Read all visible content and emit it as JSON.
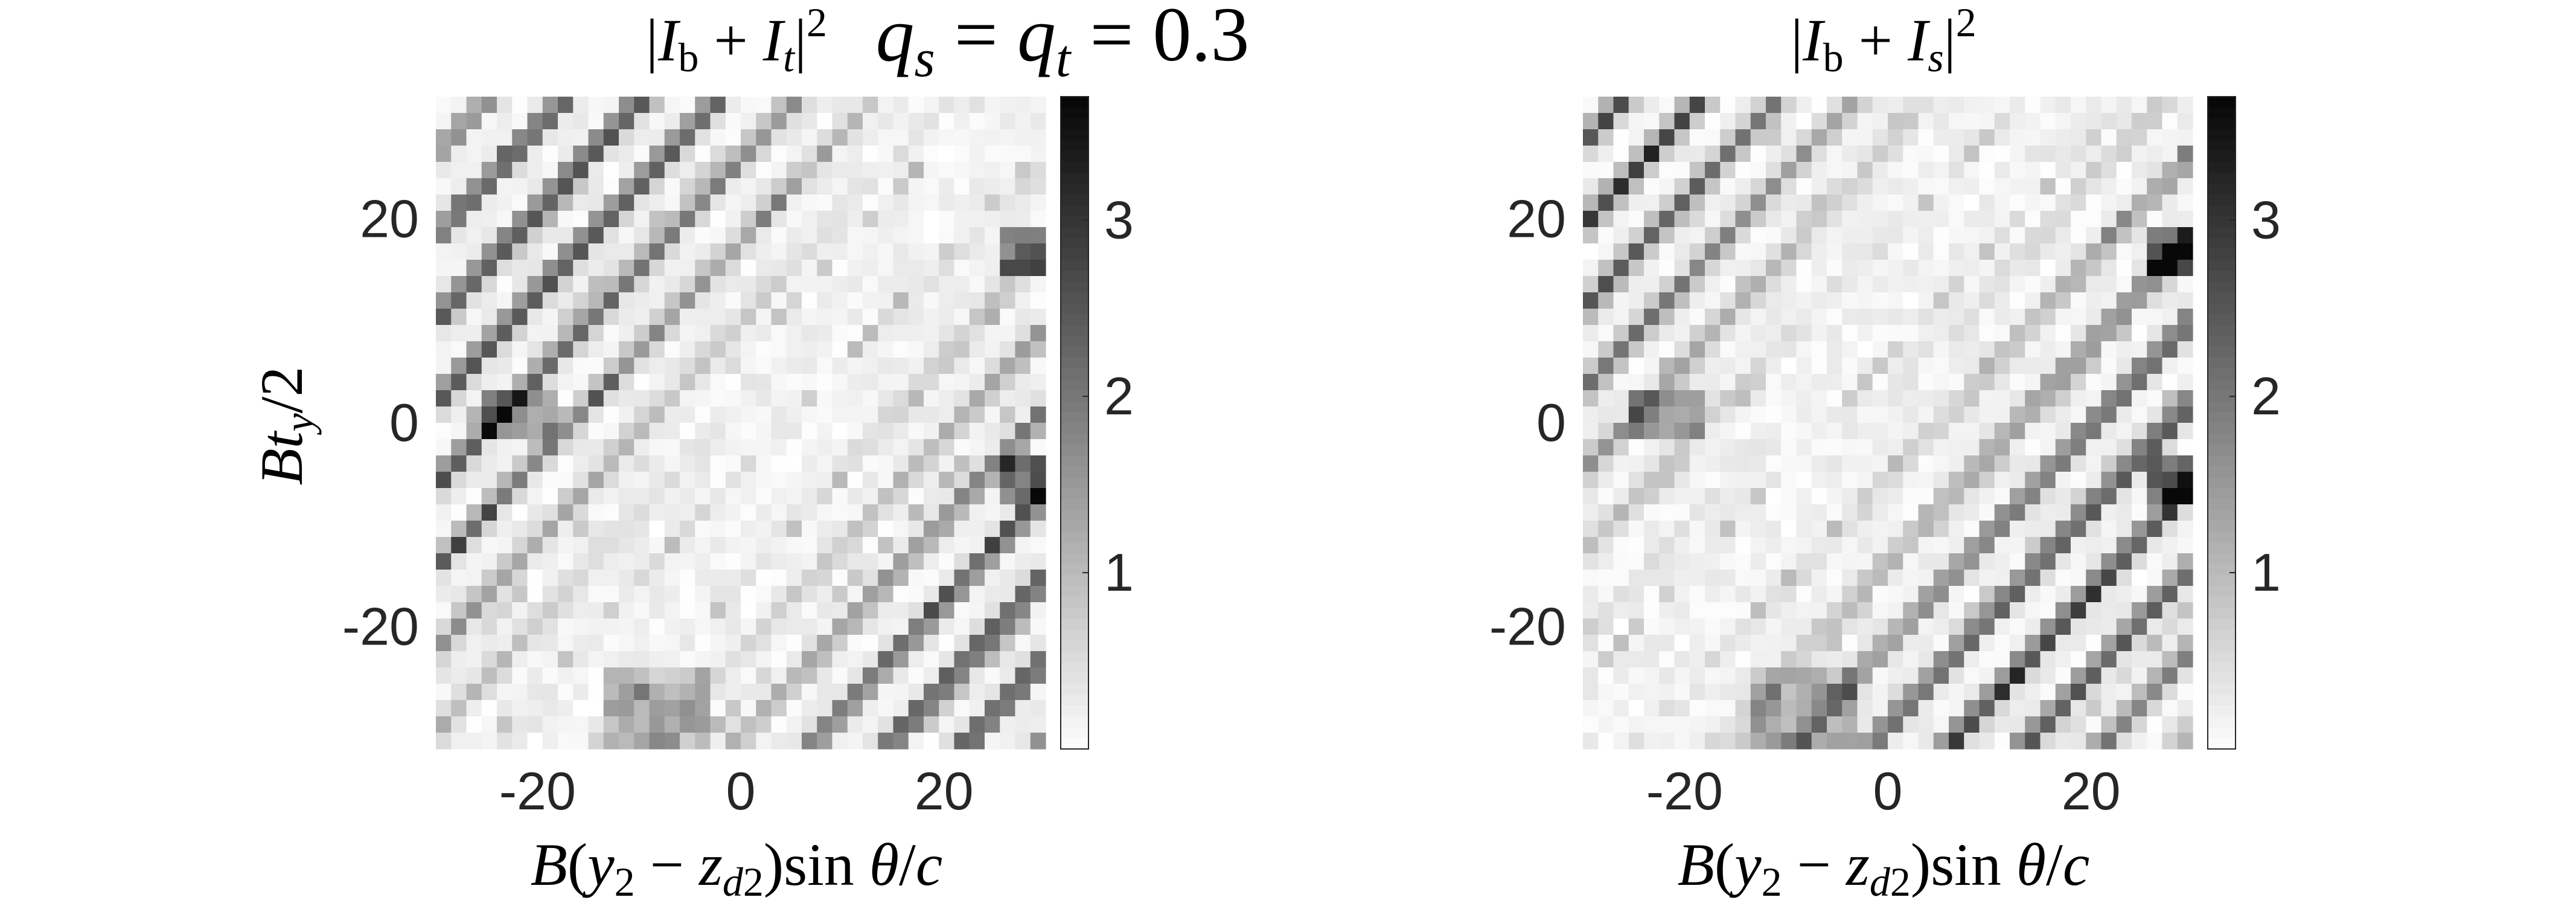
{
  "figure": {
    "suptitle": {
      "lhs1": "q",
      "sub1": "s",
      "eq": " = ",
      "lhs2": "q",
      "sub2": "t",
      "rhs": " = 0.3"
    }
  },
  "chart_data": [
    {
      "type": "heatmap",
      "title": {
        "I": "I",
        "b": "b",
        "plus": " + ",
        "I2": "I",
        "sub": "t",
        "power": "2"
      },
      "xlabel": "B(y2 − zd2)sin θ/c",
      "ylabel": "Bt_y/2",
      "xlim": [
        -30,
        30
      ],
      "ylim": [
        -32,
        32
      ],
      "xticks": [
        -20,
        0,
        20
      ],
      "yticks": [
        -20,
        0,
        20
      ],
      "colorbar": {
        "ticks": [
          1,
          2,
          3
        ],
        "range": [
          0,
          3.7
        ],
        "colormap": "gray-reversed"
      },
      "grid": {
        "nx": 40,
        "ny": 40,
        "seed": 11
      }
    },
    {
      "type": "heatmap",
      "title": {
        "I": "I",
        "b": "b",
        "plus": " + ",
        "I2": "I",
        "sub": "s",
        "power": "2"
      },
      "xlabel": "B(y2 − zd2)sin θ/c",
      "ylabel": "",
      "xlim": [
        -30,
        30
      ],
      "ylim": [
        -32,
        32
      ],
      "xticks": [
        -20,
        0,
        20
      ],
      "yticks": [
        -20,
        0,
        20
      ],
      "colorbar": {
        "ticks": [
          1,
          2,
          3
        ],
        "range": [
          0,
          3.7
        ],
        "colormap": "gray-reversed"
      },
      "grid": {
        "nx": 40,
        "ny": 40,
        "seed": 23
      }
    }
  ]
}
